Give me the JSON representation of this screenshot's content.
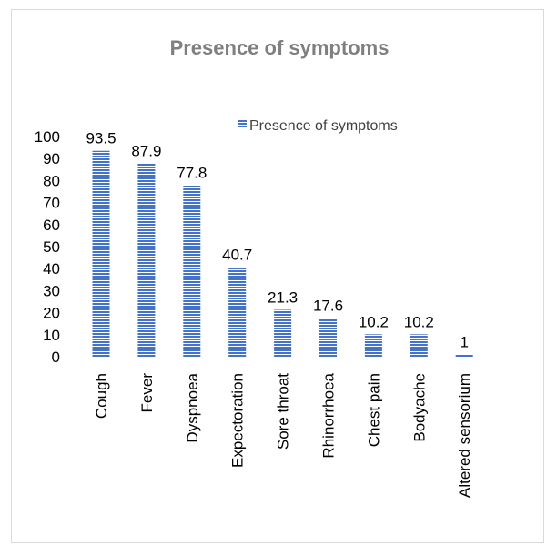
{
  "chart_data": {
    "type": "bar",
    "title": "Presence of symptoms",
    "categories": [
      "Cough",
      "Fever",
      "Dyspnoea",
      "Expectoration",
      "Sore throat",
      "Rhinorrhoea",
      "Chest pain",
      "Bodyache",
      "Altered sensorium"
    ],
    "series": [
      {
        "name": "Presence of symptoms",
        "values": [
          93.5,
          87.9,
          77.8,
          40.7,
          21.3,
          17.6,
          10.2,
          10.2,
          1
        ]
      }
    ],
    "xlabel": "",
    "ylabel": "",
    "ylim": [
      0,
      100
    ],
    "yticks": [
      0,
      10,
      20,
      30,
      40,
      50,
      60,
      70,
      80,
      90,
      100
    ],
    "grid": false,
    "legend": "top-right",
    "bar_color": "#4472C4"
  }
}
